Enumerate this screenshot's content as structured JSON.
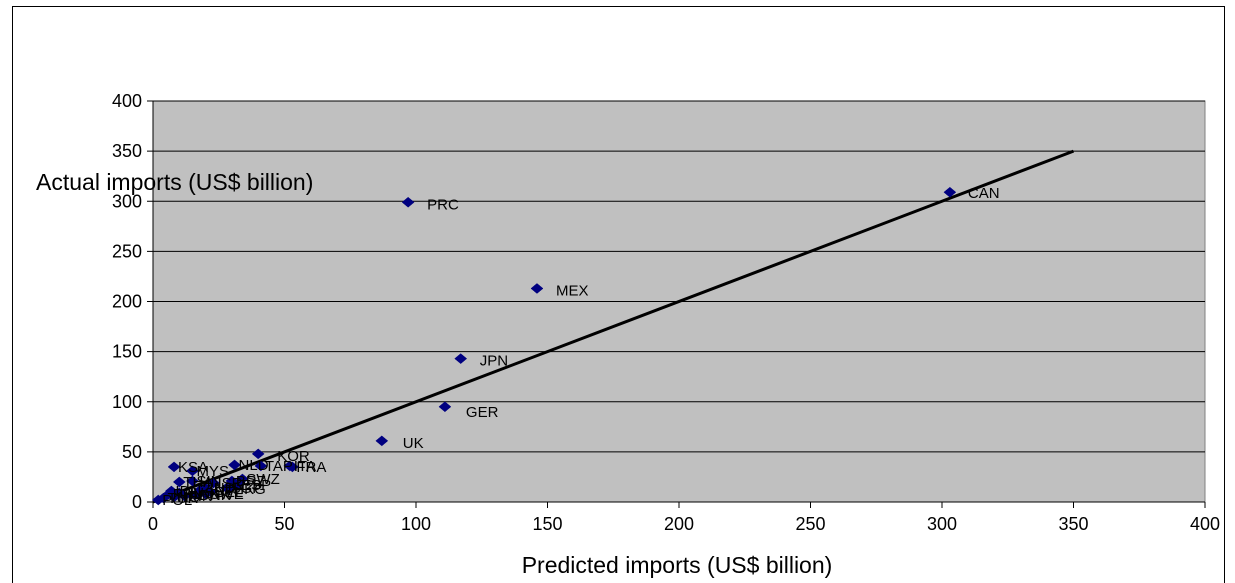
{
  "chart_data": {
    "type": "scatter",
    "xlabel": "Predicted imports (US$ billion)",
    "ylabel": "Actual imports (US$ billion)",
    "xlim": [
      0,
      400
    ],
    "ylim": [
      0,
      400
    ],
    "x_ticks": [
      "0",
      "50",
      "100",
      "150",
      "200",
      "250",
      "300",
      "350",
      "400"
    ],
    "y_ticks": [
      "0",
      "50",
      "100",
      "150",
      "200",
      "250",
      "300",
      "350",
      "400"
    ],
    "grid": "horizontal",
    "plot_background": "#c0c0c0",
    "marker_color": "#000080",
    "fit_line": {
      "x": [
        0,
        350
      ],
      "y": [
        0,
        350
      ]
    },
    "points": [
      {
        "label": "CAN",
        "x": 303,
        "y": 309
      },
      {
        "label": "PRC",
        "x": 97,
        "y": 299
      },
      {
        "label": "MEX",
        "x": 146,
        "y": 213
      },
      {
        "label": "JPN",
        "x": 117,
        "y": 143
      },
      {
        "label": "GER",
        "x": 111,
        "y": 95
      },
      {
        "label": "UK",
        "x": 87,
        "y": 61
      },
      {
        "label": "KOR",
        "x": 40,
        "y": 48
      },
      {
        "label": "KSA",
        "x": 8,
        "y": 35
      },
      {
        "label": "MYS",
        "x": 15,
        "y": 31
      },
      {
        "label": "TAP",
        "x": 41,
        "y": 36
      },
      {
        "label": "ITA",
        "x": 52,
        "y": 36
      },
      {
        "label": "FRA",
        "x": 53,
        "y": 35
      },
      {
        "label": "NLD",
        "x": 31,
        "y": 37
      },
      {
        "label": "SWZ",
        "x": 34,
        "y": 23
      },
      {
        "label": "THA",
        "x": 10,
        "y": 20
      },
      {
        "label": "SIN",
        "x": 15,
        "y": 21
      },
      {
        "label": "BRZ",
        "x": 30,
        "y": 21
      },
      {
        "label": "ISR",
        "x": 23,
        "y": 19
      },
      {
        "label": "ESP",
        "x": 32,
        "y": 17
      },
      {
        "label": "IND",
        "x": 20,
        "y": 14
      },
      {
        "label": "AUT",
        "x": 18,
        "y": 12
      },
      {
        "label": "SGP",
        "x": 28,
        "y": 14
      },
      {
        "label": "HKG",
        "x": 29,
        "y": 13
      },
      {
        "label": "BEL",
        "x": 22,
        "y": 10
      },
      {
        "label": "SWE",
        "x": 20,
        "y": 8
      },
      {
        "label": "DNK",
        "x": 16,
        "y": 7
      },
      {
        "label": "FIN",
        "x": 12,
        "y": 6
      },
      {
        "label": "AUS",
        "x": 10,
        "y": 9
      },
      {
        "label": "NO",
        "x": 8,
        "y": 5
      },
      {
        "label": "PHL",
        "x": 6,
        "y": 8
      },
      {
        "label": "IDN",
        "x": 7,
        "y": 11
      },
      {
        "label": "TUR",
        "x": 4,
        "y": 4
      },
      {
        "label": "POL",
        "x": 2,
        "y": 2
      }
    ]
  }
}
